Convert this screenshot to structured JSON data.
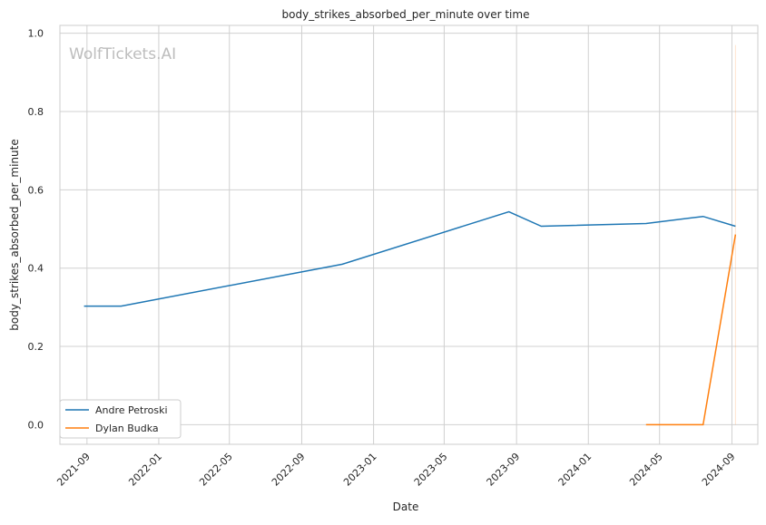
{
  "chart_data": {
    "type": "line",
    "title": "body_strikes_absorbed_per_minute over time",
    "xlabel": "Date",
    "ylabel": "body_strikes_absorbed_per_minute",
    "watermark": "WolfTickets.AI",
    "xlim": [
      "2021-07-17",
      "2024-10-15"
    ],
    "ylim": [
      -0.05,
      1.02
    ],
    "x_ticks": [
      "2021-09",
      "2022-01",
      "2022-05",
      "2022-09",
      "2023-01",
      "2023-05",
      "2023-09",
      "2024-01",
      "2024-05",
      "2024-09"
    ],
    "y_ticks": [
      "0.0",
      "0.2",
      "0.4",
      "0.6",
      "0.8",
      "1.0"
    ],
    "grid": true,
    "legend_position": "lower-left",
    "series": [
      {
        "name": "Andre Petroski",
        "color": "#1f77b4",
        "x": [
          "2021-08-27",
          "2021-10-29",
          "2022-11-09",
          "2023-08-19",
          "2023-10-13",
          "2024-04-08",
          "2024-07-14",
          "2024-09-07"
        ],
        "y": [
          0.303,
          0.303,
          0.41,
          0.544,
          0.507,
          0.514,
          0.532,
          0.507
        ]
      },
      {
        "name": "Dylan Budka",
        "color": "#ff7f0e",
        "x": [
          "2024-04-08",
          "2024-07-14",
          "2024-09-07"
        ],
        "y": [
          0.0,
          0.0,
          0.486
        ]
      }
    ]
  }
}
